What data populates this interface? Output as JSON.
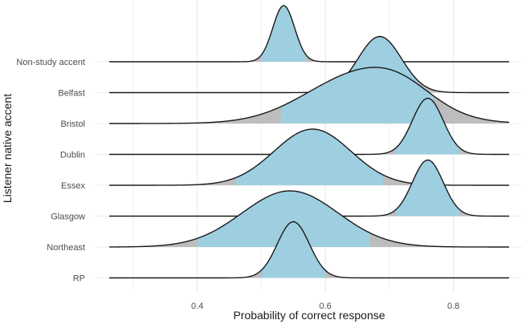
{
  "chart_data": {
    "type": "area",
    "subtype": "ridgeline-density",
    "xlabel": "Probability of correct response",
    "ylabel": "Listener native accent",
    "xlim": [
      0.25,
      0.88
    ],
    "x_ticks": [
      0.4,
      0.6,
      0.8
    ],
    "grid": true,
    "fill_color": "#9ecfe0",
    "tail_color": "#bdbdbd",
    "line_color": "#1a1a1a",
    "series": [
      {
        "name": "Non-study accent",
        "mode": 0.535,
        "interval": [
          0.5,
          0.57
        ],
        "components": [
          {
            "mu": 0.535,
            "sd": 0.017,
            "w": 1
          }
        ]
      },
      {
        "name": "Belfast",
        "mode": 0.685,
        "interval": [
          0.62,
          0.745
        ],
        "components": [
          {
            "mu": 0.685,
            "sd": 0.034,
            "w": 1
          }
        ]
      },
      {
        "name": "Bristol",
        "mode": 0.66,
        "interval": [
          0.53,
          0.77
        ],
        "components": [
          {
            "mu": 0.655,
            "sd": 0.085,
            "w": 1
          },
          {
            "mu": 0.72,
            "sd": 0.05,
            "w": 0.25
          }
        ]
      },
      {
        "name": "Dublin",
        "mode": 0.76,
        "interval": [
          0.71,
          0.81
        ],
        "components": [
          {
            "mu": 0.76,
            "sd": 0.024,
            "w": 1
          }
        ]
      },
      {
        "name": "Essex",
        "mode": 0.58,
        "interval": [
          0.46,
          0.69
        ],
        "components": [
          {
            "mu": 0.58,
            "sd": 0.06,
            "w": 1
          }
        ]
      },
      {
        "name": "Glasgow",
        "mode": 0.76,
        "interval": [
          0.71,
          0.81
        ],
        "components": [
          {
            "mu": 0.76,
            "sd": 0.024,
            "w": 1
          }
        ]
      },
      {
        "name": "Northeast",
        "mode": 0.55,
        "interval": [
          0.4,
          0.67
        ],
        "components": [
          {
            "mu": 0.545,
            "sd": 0.075,
            "w": 1
          }
        ]
      },
      {
        "name": "RP",
        "mode": 0.55,
        "interval": [
          0.5,
          0.6
        ],
        "components": [
          {
            "mu": 0.55,
            "sd": 0.025,
            "w": 1
          }
        ]
      }
    ]
  }
}
